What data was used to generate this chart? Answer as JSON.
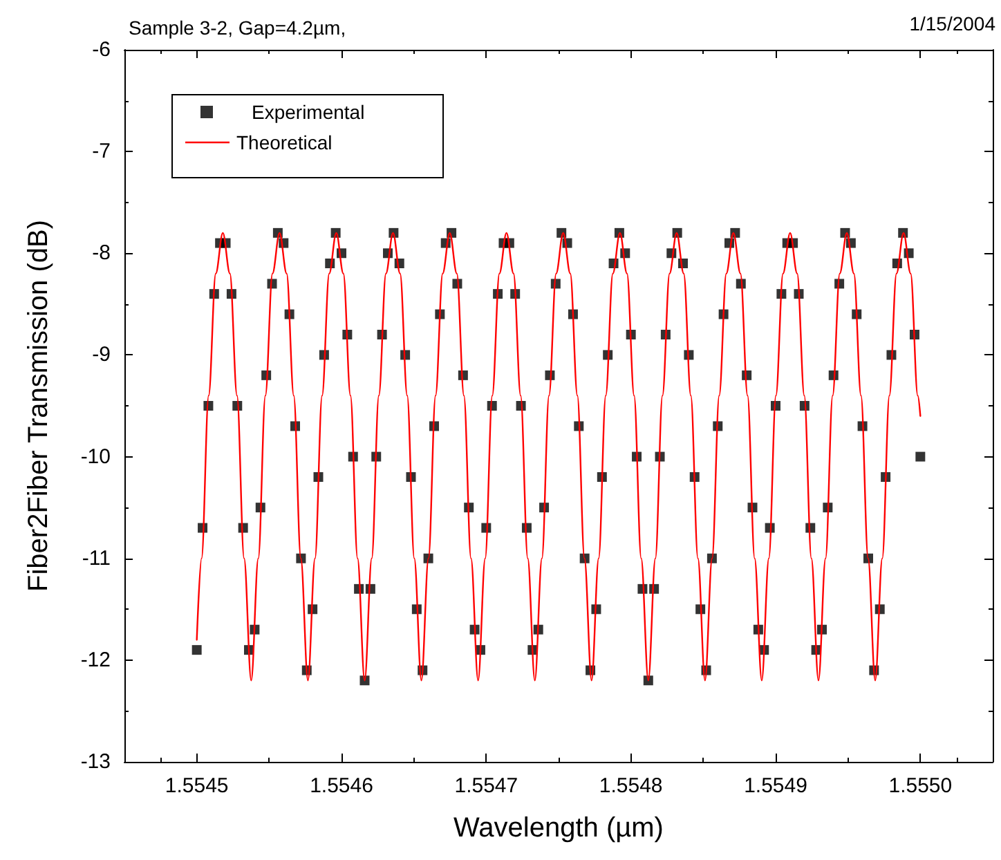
{
  "chart_data": {
    "type": "scatter",
    "title": "Sample 3-2, Gap=4.2µm,",
    "annotations": [
      "1/15/2004"
    ],
    "xlabel": "Wavelength (µm)",
    "ylabel": "Fiber2Fiber Transmission (dB)",
    "xlim": [
      1.55445,
      1.55505
    ],
    "xticks": [
      1.5545,
      1.5546,
      1.5547,
      1.5548,
      1.5549,
      {
        "value": 1.555,
        "label": "1.5550"
      }
    ],
    "ylim": [
      -13,
      -6
    ],
    "yticks": [
      -13,
      -12,
      -11,
      -10,
      -9,
      -8,
      -7,
      -6
    ],
    "legend": "top left",
    "series": [
      {
        "name": "Experimental",
        "marker": "square",
        "color": "#000000",
        "x": [
          1.5545,
          1.554504,
          1.554508,
          1.554512,
          1.554516,
          1.55452,
          1.554524,
          1.554528,
          1.554532,
          1.554536,
          1.55454,
          1.554544,
          1.554548,
          1.554552,
          1.554556,
          1.55456,
          1.554564,
          1.554568,
          1.554572,
          1.554576,
          1.55458,
          1.554584,
          1.554588,
          1.554592,
          1.554596,
          1.5546,
          1.554604,
          1.554608,
          1.554612,
          1.554616,
          1.55462,
          1.554624,
          1.554628,
          1.554632,
          1.554636,
          1.55464,
          1.554644,
          1.554648,
          1.554652,
          1.554656,
          1.55466,
          1.554664,
          1.554668,
          1.554672,
          1.554676,
          1.55468,
          1.554684,
          1.554688,
          1.554692,
          1.554696,
          1.5547,
          1.554704,
          1.554708,
          1.554712,
          1.554716,
          1.55472,
          1.554724,
          1.554728,
          1.554732,
          1.554736,
          1.55474,
          1.554744,
          1.554748,
          1.554752,
          1.554756,
          1.55476,
          1.554764,
          1.554768,
          1.554772,
          1.554776,
          1.55478,
          1.554784,
          1.554788,
          1.554792,
          1.554796,
          1.5548,
          1.554804,
          1.554808,
          1.554812,
          1.554816,
          1.55482,
          1.554824,
          1.554828,
          1.554832,
          1.554836,
          1.55484,
          1.554844,
          1.554848,
          1.554852,
          1.554856,
          1.55486,
          1.554864,
          1.554868,
          1.554872,
          1.554876,
          1.55488,
          1.554884,
          1.554888,
          1.554892,
          1.554896,
          1.5549,
          1.554904,
          1.554908,
          1.554912,
          1.554916,
          1.55492,
          1.554924,
          1.554928,
          1.554932,
          1.554936,
          1.55494,
          1.554944,
          1.554948,
          1.554952,
          1.554956,
          1.55496,
          1.554964,
          1.554968,
          1.554972,
          1.554976,
          1.55498,
          1.554984,
          1.554988,
          1.554992,
          1.554996,
          1.555
        ],
        "values": [
          -11.9,
          -10.7,
          -9.5,
          -8.4,
          -7.9,
          -7.9,
          -8.4,
          -9.5,
          -10.7,
          -11.9,
          -11.7,
          -10.5,
          -9.2,
          -8.3,
          -7.8,
          -7.9,
          -8.6,
          -9.7,
          -11.0,
          -12.1,
          -11.5,
          -10.2,
          -9.0,
          -8.1,
          -7.8,
          -8.0,
          -8.8,
          -10.0,
          -11.3,
          -12.2,
          -11.3,
          -10.0,
          -8.8,
          -8.0,
          -7.8,
          -8.1,
          -9.0,
          -10.2,
          -11.5,
          -12.1,
          -11.0,
          -9.7,
          -8.6,
          -7.9,
          -7.8,
          -8.3,
          -9.2,
          -10.5,
          -11.7,
          -11.9,
          -10.7,
          -9.5,
          -8.4,
          -7.9,
          -7.9,
          -8.4,
          -9.5,
          -10.7,
          -11.9,
          -11.7,
          -10.5,
          -9.2,
          -8.3,
          -7.8,
          -7.9,
          -8.6,
          -9.7,
          -11.0,
          -12.1,
          -11.5,
          -10.2,
          -9.0,
          -8.1,
          -7.8,
          -8.0,
          -8.8,
          -10.0,
          -11.3,
          -12.2,
          -11.3,
          -10.0,
          -8.8,
          -8.0,
          -7.8,
          -8.1,
          -9.0,
          -10.2,
          -11.5,
          -12.1,
          -11.0,
          -9.7,
          -8.6,
          -7.9,
          -7.8,
          -8.3,
          -9.2,
          -10.5,
          -11.7,
          -11.9,
          -10.7,
          -9.5,
          -8.4,
          -7.9,
          -7.9,
          -8.4,
          -9.5,
          -10.7,
          -11.9,
          -11.7,
          -10.5,
          -9.2,
          -8.3,
          -7.8,
          -7.9,
          -8.6,
          -9.7,
          -11.0,
          -12.1,
          -11.5,
          -10.2,
          -9.0,
          -8.1,
          -7.8,
          -8.0,
          -8.8,
          -10.0
        ]
      },
      {
        "name": "Theoretical",
        "type": "line",
        "marker": "none",
        "line_style": "solid",
        "color": "#ff0000",
        "x": [
          1.5545,
          1.5545033,
          1.5545082,
          1.5545131,
          1.554518,
          1.5545229,
          1.5545278,
          1.5545327,
          1.5545376,
          1.5545425,
          1.5545474,
          1.5545523,
          1.5545572,
          1.5545621,
          1.554567,
          1.5545719,
          1.5545768,
          1.5545817,
          1.5545866,
          1.5545915,
          1.5545964,
          1.5546013,
          1.5546062,
          1.5546111,
          1.554616,
          1.5546209,
          1.5546258,
          1.5546307,
          1.5546356,
          1.5546405,
          1.5546454,
          1.5546503,
          1.5546552,
          1.5546601,
          1.554665,
          1.5546699,
          1.5546748,
          1.5546797,
          1.5546846,
          1.5546895,
          1.5546944,
          1.5546993,
          1.5547042,
          1.5547091,
          1.554714,
          1.5547189,
          1.5547238,
          1.5547287,
          1.5547336,
          1.5547385,
          1.5547434,
          1.5547483,
          1.5547532,
          1.5547581,
          1.554763,
          1.5547679,
          1.5547728,
          1.5547777,
          1.5547826,
          1.5547875,
          1.5547924,
          1.5547973,
          1.5548022,
          1.5548071,
          1.554812,
          1.5548169,
          1.5548218,
          1.5548267,
          1.5548316,
          1.5548365,
          1.5548414,
          1.5548463,
          1.5548512,
          1.5548561,
          1.554861,
          1.5548659,
          1.5548708,
          1.5548757,
          1.5548806,
          1.5548855,
          1.5548904,
          1.5548953,
          1.5549002,
          1.5549051,
          1.55491,
          1.5549149,
          1.5549198,
          1.5549247,
          1.5549296,
          1.5549345,
          1.5549394,
          1.5549443,
          1.5549492,
          1.5549541,
          1.554959,
          1.5549639,
          1.5549688,
          1.5549737,
          1.5549786,
          1.5549835,
          1.5549884,
          1.5549933,
          1.5549982,
          1.555
        ],
        "values": [
          -11.8,
          -11.0,
          -9.4,
          -8.2,
          -7.8,
          -8.2,
          -9.4,
          -11.0,
          -12.2,
          -11.0,
          -9.4,
          -8.2,
          -7.8,
          -8.2,
          -9.4,
          -11.0,
          -12.2,
          -11.0,
          -9.4,
          -8.2,
          -7.8,
          -8.2,
          -9.4,
          -11.0,
          -12.2,
          -11.0,
          -9.4,
          -8.2,
          -7.8,
          -8.2,
          -9.4,
          -11.0,
          -12.2,
          -11.0,
          -9.4,
          -8.2,
          -7.8,
          -8.2,
          -9.4,
          -11.0,
          -12.2,
          -11.0,
          -9.4,
          -8.2,
          -7.8,
          -8.2,
          -9.4,
          -11.0,
          -12.2,
          -11.0,
          -9.4,
          -8.2,
          -7.8,
          -8.2,
          -9.4,
          -11.0,
          -12.2,
          -11.0,
          -9.4,
          -8.2,
          -7.8,
          -8.2,
          -9.4,
          -11.0,
          -12.2,
          -11.0,
          -9.4,
          -8.2,
          -7.8,
          -8.2,
          -9.4,
          -11.0,
          -12.2,
          -11.0,
          -9.4,
          -8.2,
          -7.8,
          -8.2,
          -9.4,
          -11.0,
          -12.2,
          -11.0,
          -9.4,
          -8.2,
          -7.8,
          -8.2,
          -9.4,
          -11.0,
          -12.2,
          -11.0,
          -9.4,
          -8.2,
          -7.8,
          -8.2,
          -9.4,
          -11.0,
          -12.2,
          -11.0,
          -9.4,
          -8.2,
          -7.8,
          -8.2,
          -9.4,
          -9.6
        ]
      }
    ]
  }
}
